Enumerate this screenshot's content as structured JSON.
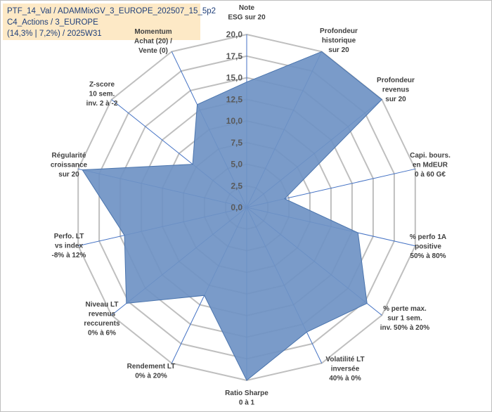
{
  "header": {
    "title_line1": "PTF_14_Val / ADAMMixGV_3_EUROPE_202507_15_5p2",
    "title_line2": "C4_Actions / 3_EUROPE",
    "title_line3": "(14,3% | 7,2%) / 2025W31"
  },
  "chart_data": {
    "type": "radar",
    "title": "",
    "rlim": [
      0,
      20
    ],
    "ticks": [
      "0,0",
      "2,5",
      "5,0",
      "7,5",
      "10,0",
      "12,5",
      "15,0",
      "17,5",
      "20,0"
    ],
    "grid": true,
    "colors": {
      "fill": "#6f93c4",
      "line": "#4a74ad",
      "axis": "#4472c4",
      "grid": "#bfbfbf"
    },
    "categories": [
      [
        "Note",
        "ESG sur 20"
      ],
      [
        "Profondeur",
        "historique",
        "sur 20"
      ],
      [
        "Profondeur",
        "revenus",
        "sur 20"
      ],
      [
        "Capi. bours.",
        "en MdEUR",
        "0 à 60 G€"
      ],
      [
        "% perfo 1A",
        "positive",
        "50% à 80%"
      ],
      [
        "% perte max.",
        "sur 1 sem.",
        "inv. 50% à 20%"
      ],
      [
        "Volatilité LT",
        "inversée",
        "40% à 0%"
      ],
      [
        "Ratio Sharpe",
        "0 à 1"
      ],
      [
        "Rendement LT",
        "0% à 20%"
      ],
      [
        "Niveau LT",
        "revenus",
        "reccurents",
        "0% à 6%"
      ],
      [
        "Perfo. LT",
        "vs index",
        "-8% à 12%"
      ],
      [
        "Régularité",
        "croissance",
        "sur 20"
      ],
      [
        "Z-score",
        "10 sem.",
        "inv. 2 à -2"
      ],
      [
        "Momentum",
        "Achat (20) /",
        "Vente (0)"
      ]
    ],
    "series": [
      {
        "values": [
          14.5,
          20,
          20,
          4.5,
          13.2,
          17.8,
          16.0,
          20,
          11.3,
          17.8,
          14.5,
          19.5,
          8.0,
          13.2
        ]
      }
    ]
  }
}
